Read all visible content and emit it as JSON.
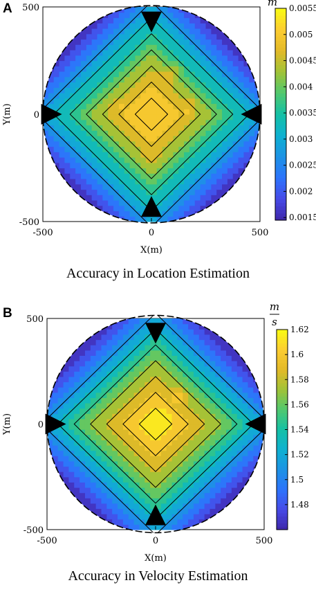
{
  "panels": [
    {
      "letter": "A",
      "caption": "Accuracy in Location Estimation"
    },
    {
      "letter": "B",
      "caption": "Accuracy in Velocity Estimation"
    }
  ],
  "chart_data": [
    {
      "type": "heatmap",
      "subtype": "filled-contour",
      "title": "",
      "xlabel": "X(m)",
      "ylabel": "Y(m)",
      "xlim": [
        -500,
        500
      ],
      "ylim": [
        -500,
        500
      ],
      "x_ticks": [
        "-500",
        "0",
        "500"
      ],
      "y_ticks": [
        "500",
        "0",
        "-500"
      ],
      "colorbar": {
        "unit_label": "m",
        "unit_style": "single",
        "range": [
          0.00145,
          0.0055
        ],
        "tick_values": [
          0.0055,
          0.005,
          0.0045,
          0.004,
          0.0035,
          0.003,
          0.0025,
          0.002,
          0.0015
        ],
        "tick_labels": [
          "0.0055",
          "0.005",
          "0.0045",
          "0.004",
          "0.0035",
          "0.003",
          "0.0025",
          "0.002",
          "0.0015"
        ],
        "colormap": "parula"
      },
      "region": "circle of radius 500 m centered at origin",
      "pattern": "diamond",
      "sensors": [
        {
          "x": 0,
          "y": 430,
          "dir": "down"
        },
        {
          "x": 0,
          "y": -430,
          "dir": "up"
        },
        {
          "x": -460,
          "y": 0,
          "dir": "right"
        },
        {
          "x": 460,
          "y": 0,
          "dir": "left"
        }
      ],
      "field_model": {
        "center_value": 0.0052,
        "min_value": 0.0015,
        "peaks": [
          {
            "x": -150,
            "y": 40,
            "value": 0.0051
          },
          {
            "x": 80,
            "y": 180,
            "value": 0.0051
          },
          {
            "x": 170,
            "y": 30,
            "value": 0.0051
          },
          {
            "x": 0,
            "y": -190,
            "value": 0.005
          }
        ]
      }
    },
    {
      "type": "heatmap",
      "subtype": "filled-contour",
      "title": "",
      "xlabel": "X(m)",
      "ylabel": "Y(m)",
      "xlim": [
        -500,
        500
      ],
      "ylim": [
        -500,
        500
      ],
      "x_ticks": [
        "-500",
        "0",
        "500"
      ],
      "y_ticks": [
        "500",
        "0",
        "-500"
      ],
      "colorbar": {
        "unit_label_num": "m",
        "unit_label_den": "s",
        "unit_style": "fraction",
        "range": [
          1.46,
          1.62
        ],
        "tick_values": [
          1.62,
          1.6,
          1.58,
          1.56,
          1.54,
          1.52,
          1.5,
          1.48
        ],
        "tick_labels": [
          "1.62",
          "1.6",
          "1.58",
          "1.56",
          "1.54",
          "1.52",
          "1.5",
          "1.48"
        ],
        "colormap": "parula"
      },
      "region": "circle of radius 500 m centered at origin",
      "pattern": "diamond",
      "sensors": [
        {
          "x": 0,
          "y": 430,
          "dir": "down"
        },
        {
          "x": 0,
          "y": -430,
          "dir": "up"
        },
        {
          "x": -460,
          "y": 0,
          "dir": "right"
        },
        {
          "x": 460,
          "y": 0,
          "dir": "left"
        }
      ],
      "field_model": {
        "center_value": 1.615,
        "min_value": 1.465,
        "peaks": [
          {
            "x": 50,
            "y": 50,
            "value": 1.615
          },
          {
            "x": 100,
            "y": 130,
            "value": 1.61
          }
        ]
      }
    }
  ]
}
